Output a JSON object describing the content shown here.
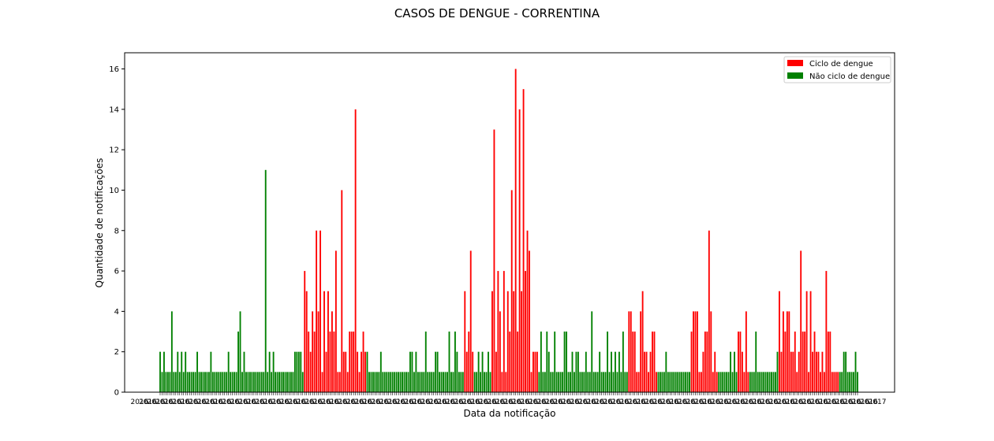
{
  "chart_data": {
    "type": "bar",
    "title": "CASOS DE DENGUE - CORRENTINA",
    "xlabel": "Data da notificação",
    "ylabel": "Quantidade de notificações",
    "ylim": [
      0,
      16.8
    ],
    "yticks": [
      0,
      2,
      4,
      6,
      8,
      10,
      12,
      14,
      16
    ],
    "xtick_labels_note": "dense overlapping date labels; unreadable",
    "x_first_tick_label": "2016",
    "x_last_tick_label": "2017",
    "grid": false,
    "legend_position": "top-right",
    "colors": {
      "ciclo": "#ff0000",
      "nao_ciclo": "#008000"
    },
    "legend": [
      {
        "label": "Ciclo de dengue",
        "color": "#ff0000"
      },
      {
        "label": "Não ciclo de dengue",
        "color": "#008000"
      }
    ],
    "series": [
      {
        "name": "Não ciclo de dengue",
        "color": "#008000",
        "values": [
          2,
          1,
          2,
          1,
          1,
          1,
          4,
          1,
          1,
          2,
          1,
          2,
          1,
          2,
          1,
          1,
          1,
          1,
          1,
          2,
          1,
          1,
          1,
          1,
          1,
          1,
          2,
          1,
          1,
          1,
          1,
          1,
          1,
          1,
          1,
          2,
          1,
          1,
          1,
          1,
          3,
          4,
          1,
          2,
          1,
          1,
          1,
          1,
          1,
          1,
          1,
          1,
          1,
          1,
          11,
          1,
          2,
          1,
          2,
          1,
          1,
          1,
          1,
          1,
          1,
          1,
          1,
          1,
          1,
          2,
          2,
          2,
          2,
          1
        ]
      },
      {
        "name": "Ciclo de dengue",
        "color": "#ff0000",
        "values": [
          6,
          5,
          3,
          2,
          4,
          3,
          8,
          4,
          8,
          1,
          5,
          2,
          5,
          3,
          4,
          3,
          7,
          1,
          1,
          10,
          2,
          2,
          1,
          3,
          3,
          3,
          14,
          2,
          1,
          2,
          3,
          2
        ]
      },
      {
        "name": "Não ciclo de dengue",
        "color": "#008000",
        "values": [
          2,
          1,
          1,
          1,
          1,
          1,
          1,
          2,
          1,
          1,
          1,
          1,
          1,
          1,
          1,
          1,
          1,
          1,
          1,
          1,
          1,
          1,
          2,
          2,
          1,
          2,
          1,
          1,
          1,
          1,
          3,
          1,
          1,
          1,
          1,
          2,
          2,
          1,
          1,
          1,
          1,
          1,
          3,
          1,
          1,
          3,
          2,
          1,
          1,
          1
        ]
      },
      {
        "name": "Ciclo de dengue",
        "color": "#ff0000",
        "values": [
          5,
          2,
          3,
          7,
          2
        ]
      },
      {
        "name": "Não ciclo de dengue",
        "color": "#008000",
        "values": [
          1,
          1,
          2,
          1,
          2,
          1,
          1,
          2,
          1
        ]
      },
      {
        "name": "Ciclo de dengue",
        "color": "#ff0000",
        "values": [
          5,
          13,
          2,
          6,
          4,
          1,
          6,
          1,
          5,
          3,
          10,
          5,
          16,
          3,
          14,
          5,
          15,
          6,
          8,
          7,
          1,
          2,
          2,
          2
        ]
      },
      {
        "name": "Não ciclo de dengue",
        "color": "#008000",
        "values": [
          1,
          3,
          1,
          1,
          3,
          2,
          1,
          1,
          3,
          1,
          1,
          1,
          1,
          3,
          3,
          1,
          1,
          2,
          1,
          2,
          2,
          1,
          1,
          1,
          2,
          1,
          1,
          4,
          1,
          1,
          1,
          2,
          1,
          1,
          1,
          3,
          1,
          2,
          1,
          2,
          1,
          2,
          1,
          3,
          1,
          1
        ]
      },
      {
        "name": "Ciclo de dengue",
        "color": "#ff0000",
        "values": [
          4,
          4,
          3,
          3,
          1,
          1,
          4,
          5,
          2,
          2,
          1,
          2,
          3,
          3,
          1
        ]
      },
      {
        "name": "Não ciclo de dengue",
        "color": "#008000",
        "values": [
          1,
          1,
          1,
          1,
          2,
          1,
          1,
          1,
          1,
          1,
          1,
          1,
          1,
          1,
          1,
          1,
          1
        ]
      },
      {
        "name": "Ciclo de dengue",
        "color": "#ff0000",
        "values": [
          3,
          4,
          4,
          4,
          1,
          1,
          2,
          3,
          3,
          8,
          4,
          1,
          2,
          1
        ]
      },
      {
        "name": "Não ciclo de dengue",
        "color": "#008000",
        "values": [
          1,
          1,
          1,
          1,
          1,
          1,
          2,
          1,
          2,
          1
        ]
      },
      {
        "name": "Ciclo de dengue",
        "color": "#ff0000",
        "values": [
          3,
          3,
          2,
          1,
          4,
          1
        ]
      },
      {
        "name": "Não ciclo de dengue",
        "color": "#008000",
        "values": [
          1,
          1,
          1,
          3,
          1,
          1,
          1,
          1,
          1,
          1,
          1,
          1,
          1,
          1,
          2
        ]
      },
      {
        "name": "Ciclo de dengue",
        "color": "#ff0000",
        "values": [
          5,
          2,
          4,
          3,
          4,
          4,
          2,
          2,
          3,
          1,
          2,
          7,
          3,
          3,
          5,
          1,
          5,
          2,
          3,
          2,
          2,
          1,
          2,
          1,
          6,
          3,
          3,
          1,
          1,
          1,
          1
        ]
      },
      {
        "name": "Não ciclo de dengue",
        "color": "#008000",
        "values": [
          1,
          1,
          2,
          2,
          1,
          1,
          1,
          1,
          2,
          1
        ]
      }
    ]
  }
}
